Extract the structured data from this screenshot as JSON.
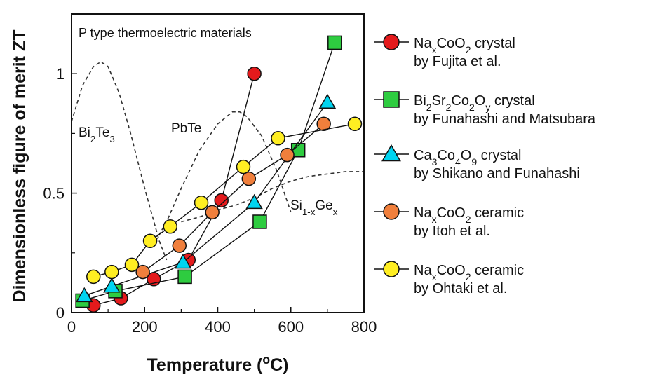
{
  "chart_data": {
    "type": "scatter",
    "title": "",
    "annotation": "P type thermoelectric materials",
    "xlabel": "Temperature (°C)",
    "xlabel_parts": [
      "Temperature (",
      "o",
      "C)"
    ],
    "ylabel": "Dimensionless figure of merit ZT",
    "xlim": [
      0,
      800
    ],
    "ylim": [
      0,
      1.25
    ],
    "xticks": [
      0,
      200,
      400,
      600,
      800
    ],
    "yticks": [
      {
        "value": 0,
        "label": "0"
      },
      {
        "value": 0.5,
        "label": "0.5"
      },
      {
        "value": 1,
        "label": "1"
      }
    ],
    "grid": false,
    "legend_position": "right",
    "series": [
      {
        "name": "NaxCoO2 crystal by Fujita et al.",
        "legend_line1": [
          [
            "Na",
            ""
          ],
          [
            "x",
            "sub"
          ],
          [
            "CoO",
            ""
          ],
          [
            "2",
            "sub"
          ],
          [
            " crystal",
            ""
          ]
        ],
        "legend_line2": "by Fujita  et al.",
        "marker": "circle",
        "color": "#e41a1c",
        "x": [
          60,
          135,
          225,
          320,
          410,
          500
        ],
        "y": [
          0.03,
          0.06,
          0.14,
          0.22,
          0.47,
          1.0
        ]
      },
      {
        "name": "Bi2Sr2Co2Oy crystal by Funahashi and Matsubara",
        "legend_line1": [
          [
            "Bi",
            ""
          ],
          [
            "2",
            "sub"
          ],
          [
            "Sr",
            ""
          ],
          [
            "2",
            "sub"
          ],
          [
            "Co",
            ""
          ],
          [
            "2",
            "sub"
          ],
          [
            "O",
            ""
          ],
          [
            "y",
            "sub"
          ],
          [
            " crystal",
            ""
          ]
        ],
        "legend_line2": "by Funahashi and Matsubara",
        "marker": "square",
        "color": "#2ecc40",
        "x": [
          30,
          120,
          310,
          515,
          620,
          720
        ],
        "y": [
          0.05,
          0.09,
          0.15,
          0.38,
          0.68,
          1.13
        ]
      },
      {
        "name": "Ca3Co4O9 crystal by Shikano and Funahashi",
        "legend_line1": [
          [
            "Ca",
            ""
          ],
          [
            "3",
            "sub"
          ],
          [
            "Co",
            ""
          ],
          [
            "4",
            "sub"
          ],
          [
            "O",
            ""
          ],
          [
            "9",
            "sub"
          ],
          [
            " crystal",
            ""
          ]
        ],
        "legend_line2": "by Shikano and Funahashi",
        "marker": "triangle",
        "color": "#00d4f0",
        "x": [
          35,
          110,
          305,
          500,
          700
        ],
        "y": [
          0.07,
          0.11,
          0.21,
          0.46,
          0.88
        ]
      },
      {
        "name": "NaxCoO2 ceramic by Itoh et al.",
        "legend_line1": [
          [
            "Na",
            ""
          ],
          [
            "x",
            "sub"
          ],
          [
            "CoO",
            ""
          ],
          [
            "2",
            "sub"
          ],
          [
            " ceramic",
            ""
          ]
        ],
        "legend_line2": "by Itoh et al.",
        "marker": "circle",
        "color": "#f07f3c",
        "x": [
          195,
          295,
          385,
          485,
          590,
          690
        ],
        "y": [
          0.17,
          0.28,
          0.42,
          0.56,
          0.66,
          0.79
        ]
      },
      {
        "name": "NaxCoO2 ceramic by Ohtaki et al.",
        "legend_line1": [
          [
            "Na",
            ""
          ],
          [
            "x",
            "sub"
          ],
          [
            "CoO",
            ""
          ],
          [
            "2",
            "sub"
          ],
          [
            " ceramic",
            ""
          ]
        ],
        "legend_line2": "by Ohtaki et al.",
        "marker": "circle",
        "color": "#ffee22",
        "x": [
          60,
          110,
          165,
          215,
          270,
          355,
          470,
          565,
          775
        ],
        "y": [
          0.15,
          0.17,
          0.2,
          0.3,
          0.36,
          0.46,
          0.61,
          0.73,
          0.79
        ]
      }
    ],
    "reference_curves": [
      {
        "name": "Bi2Te3",
        "label": [
          [
            "Bi",
            ""
          ],
          [
            "2",
            "sub"
          ],
          [
            "Te",
            ""
          ],
          [
            "3",
            "sub"
          ]
        ],
        "x": [
          0,
          30,
          60,
          80,
          100,
          130,
          160,
          200,
          240,
          260
        ],
        "y": [
          0.8,
          0.95,
          1.03,
          1.05,
          1.03,
          0.92,
          0.76,
          0.52,
          0.3,
          0.22
        ]
      },
      {
        "name": "PbTe",
        "label": [
          [
            "PbTe",
            ""
          ]
        ],
        "x": [
          230,
          260,
          300,
          350,
          400,
          440,
          460,
          480,
          520,
          560,
          600
        ],
        "y": [
          0.3,
          0.38,
          0.52,
          0.68,
          0.79,
          0.84,
          0.84,
          0.82,
          0.74,
          0.6,
          0.42
        ]
      },
      {
        "name": "Si1-xGex",
        "label": [
          [
            "Si",
            ""
          ],
          [
            "1-x",
            "sub"
          ],
          [
            "Ge",
            ""
          ],
          [
            "x",
            "sub"
          ]
        ],
        "x": [
          300,
          350,
          400,
          450,
          500,
          550,
          600,
          650,
          700,
          750,
          800
        ],
        "y": [
          0.38,
          0.4,
          0.43,
          0.45,
          0.48,
          0.52,
          0.55,
          0.57,
          0.58,
          0.59,
          0.59
        ]
      }
    ]
  }
}
